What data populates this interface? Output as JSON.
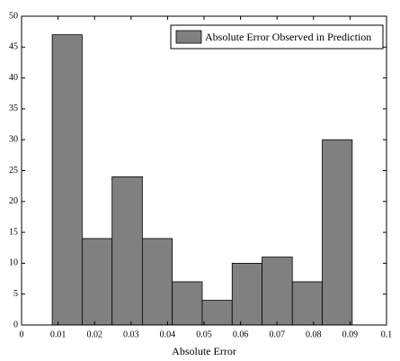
{
  "chart_data": {
    "type": "histogram",
    "xlabel": "Absolute Error",
    "legend_label": "Absolute Error Observed in Prediction",
    "legend_position": "upper right",
    "color": "#808080",
    "bins": [
      0.0084,
      0.0166,
      0.0248,
      0.0331,
      0.0413,
      0.0495,
      0.0577,
      0.0659,
      0.0742,
      0.0824,
      0.0906
    ],
    "values": [
      47,
      14,
      24,
      14,
      7,
      4,
      10,
      11,
      7,
      30
    ],
    "xlim": [
      0,
      0.1
    ],
    "xticks": [
      0,
      0.01,
      0.02,
      0.03,
      0.04,
      0.05,
      0.06,
      0.07,
      0.08,
      0.09,
      0.1
    ],
    "ylim": [
      0,
      50
    ],
    "yticks": [
      0,
      5,
      10,
      15,
      20,
      25,
      30,
      35,
      40,
      45,
      50
    ]
  }
}
